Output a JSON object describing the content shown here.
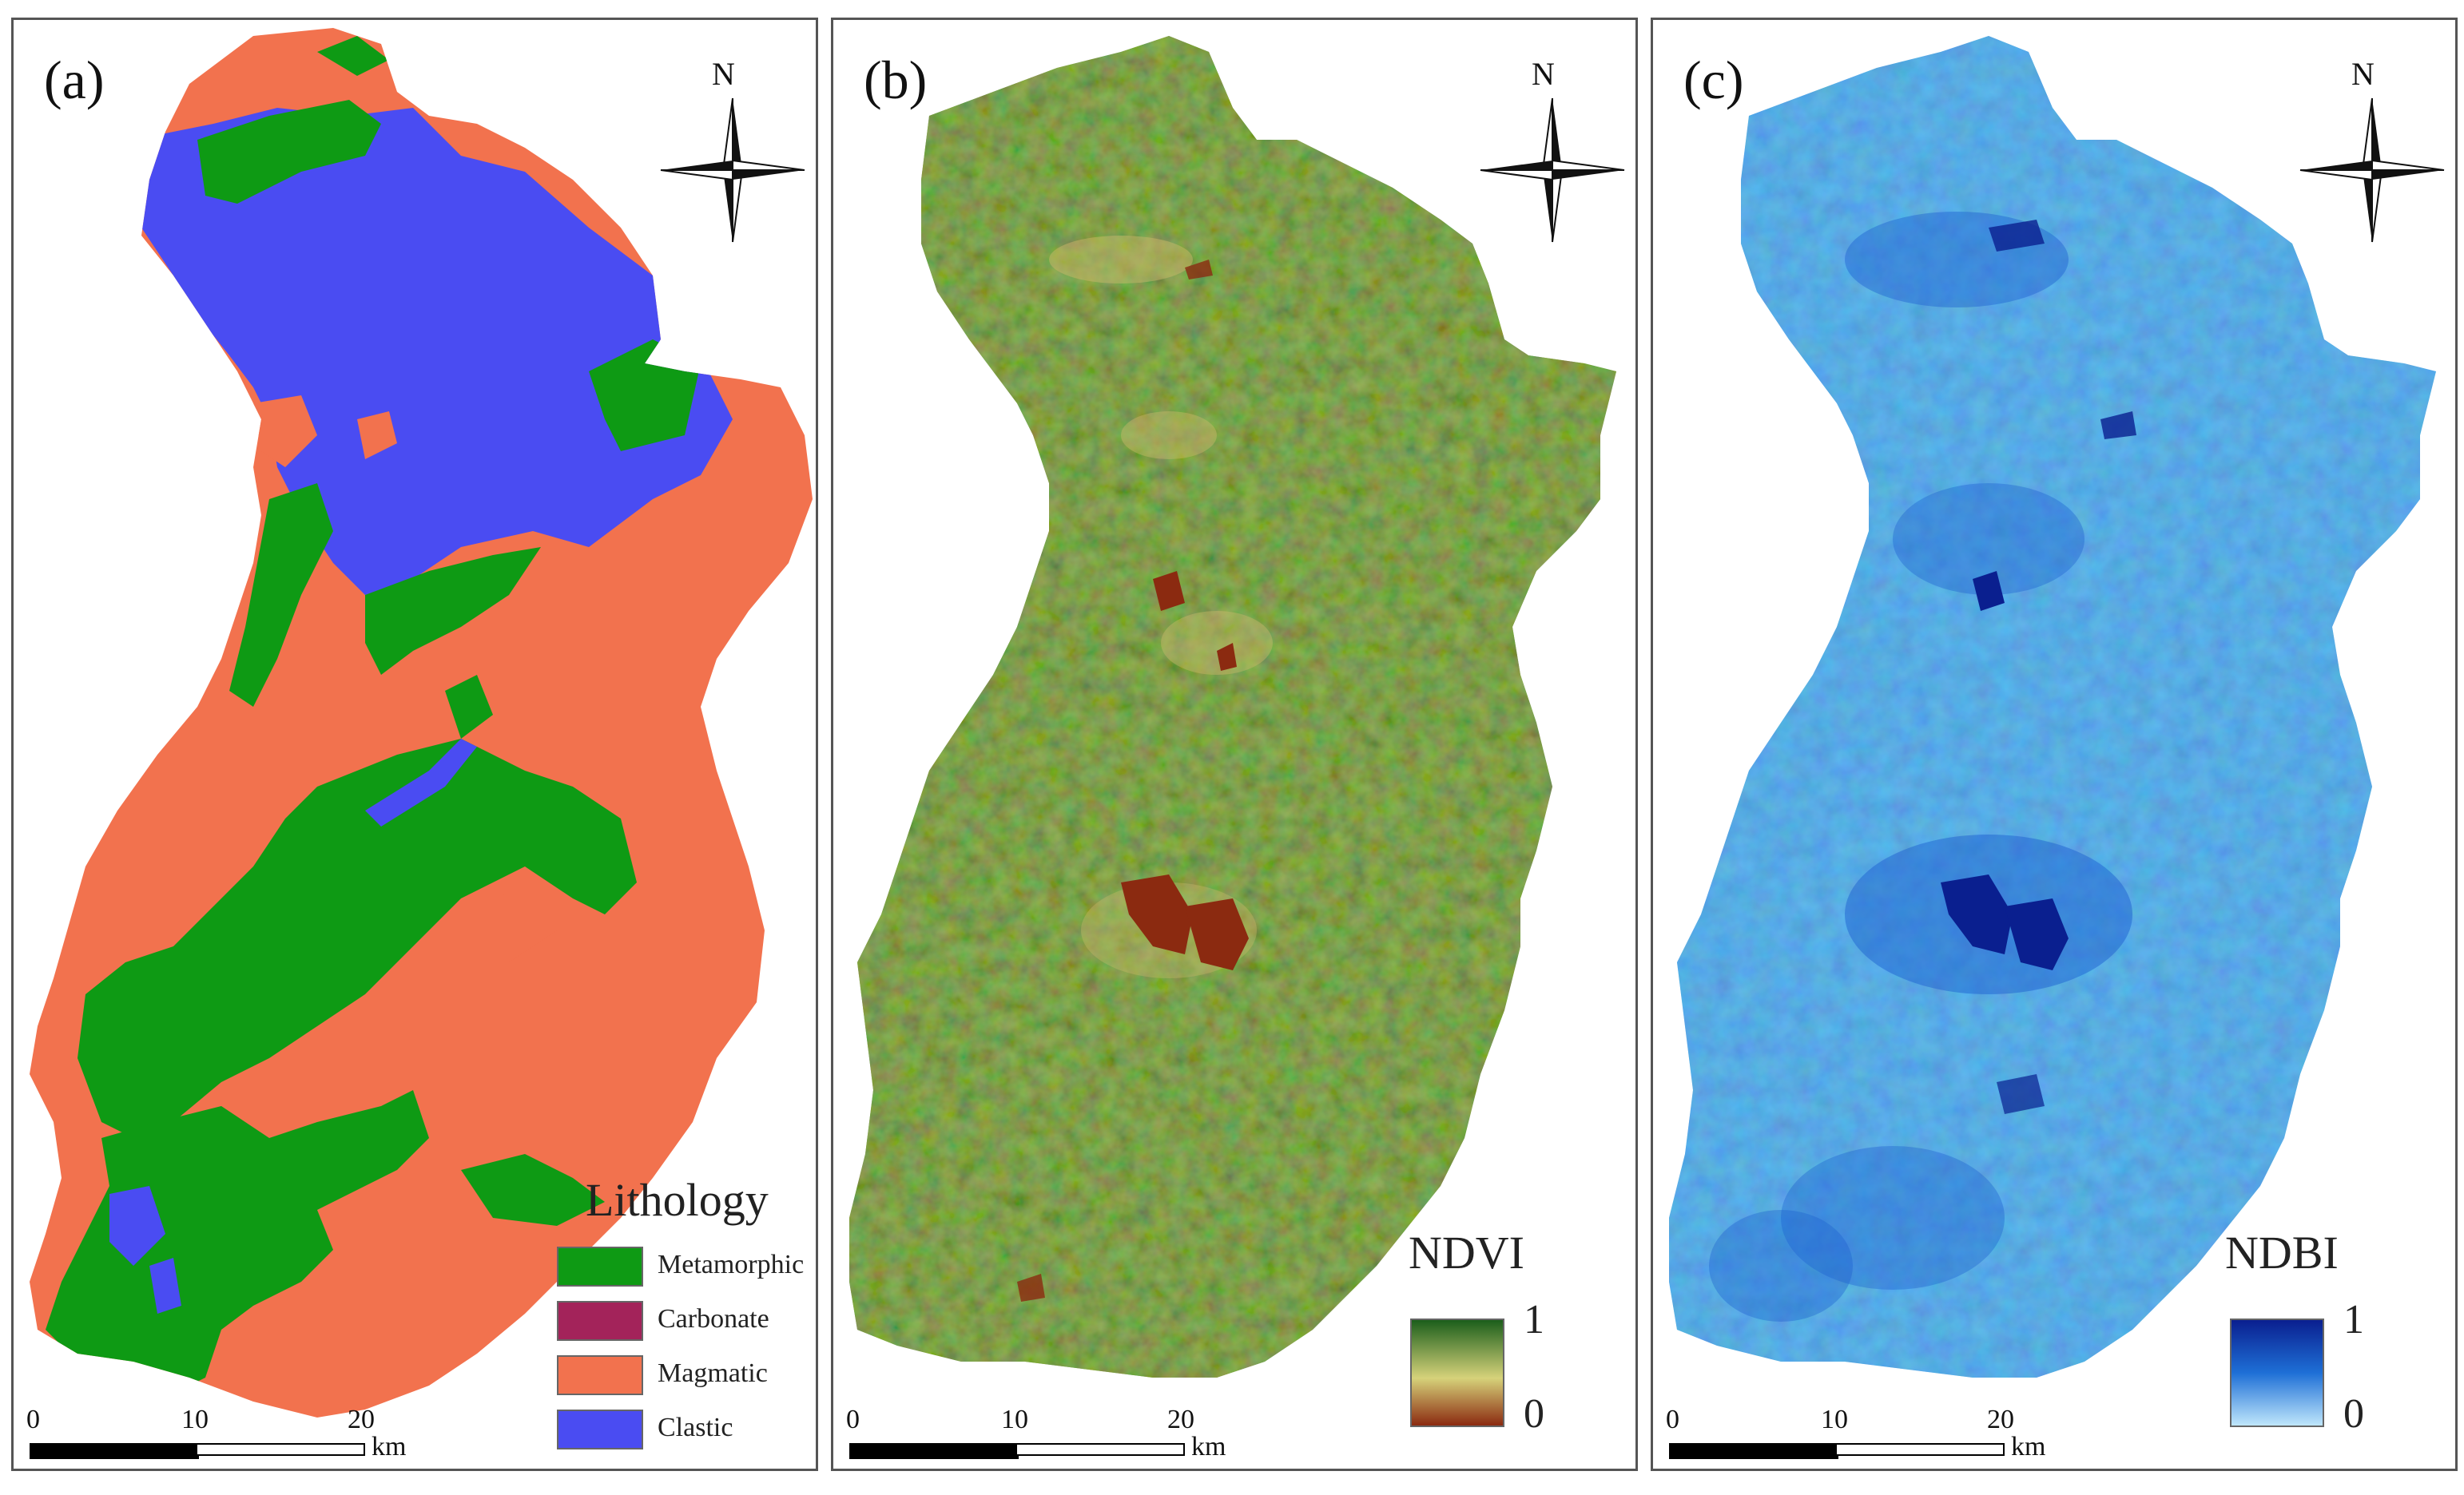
{
  "figure": {
    "panels": [
      {
        "id": "a",
        "label": "(a)",
        "north_label": "N",
        "legend": {
          "title": "Lithology",
          "items": [
            {
              "label": "Metamorphic",
              "color": "#0e9a14"
            },
            {
              "label": "Carbonate",
              "color": "#a3235a"
            },
            {
              "label": "Magmatic",
              "color": "#f2724e"
            },
            {
              "label": "Clastic",
              "color": "#4a4cf2"
            }
          ]
        },
        "scalebar": {
          "ticks": [
            "0",
            "10",
            "20"
          ],
          "unit": "km"
        }
      },
      {
        "id": "b",
        "label": "(b)",
        "north_label": "N",
        "legend": {
          "title": "NDVI",
          "max": "1",
          "min": "0",
          "colors": [
            "#1b5e1b",
            "#d6d27a",
            "#8b2a10"
          ]
        },
        "scalebar": {
          "ticks": [
            "0",
            "10",
            "20"
          ],
          "unit": "km"
        }
      },
      {
        "id": "c",
        "label": "(c)",
        "north_label": "N",
        "legend": {
          "title": "NDBI",
          "max": "1",
          "min": "0",
          "colors": [
            "#0a1f8f",
            "#1e6fd6",
            "#bfe6fb"
          ]
        },
        "scalebar": {
          "ticks": [
            "0",
            "10",
            "20"
          ],
          "unit": "km"
        }
      }
    ]
  }
}
